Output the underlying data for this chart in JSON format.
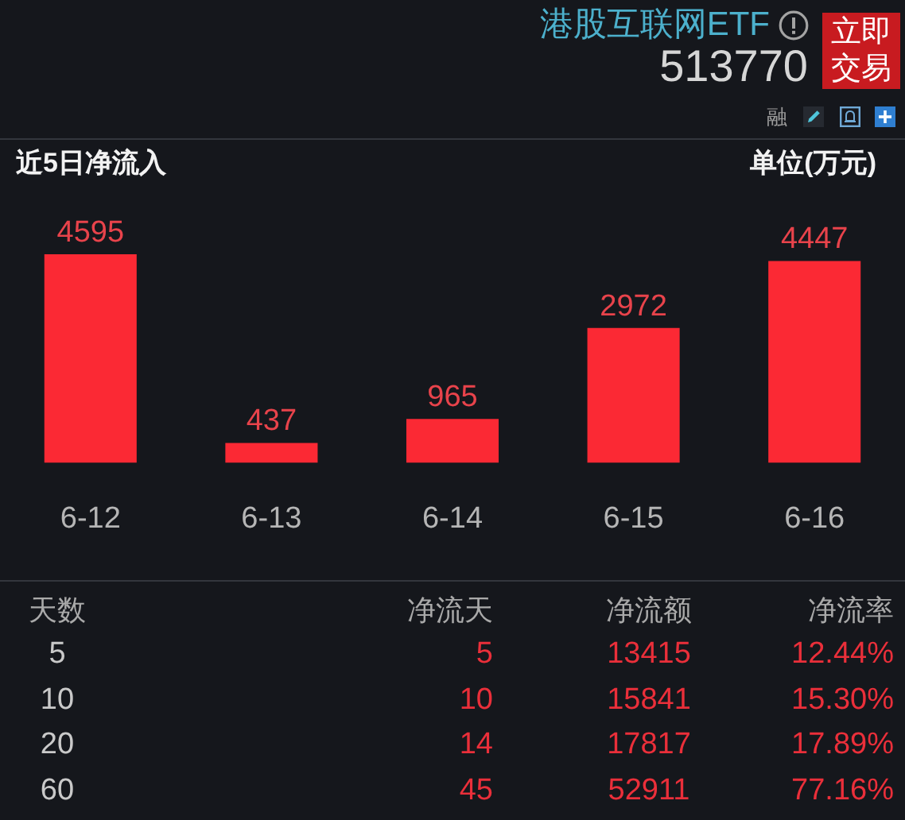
{
  "chart_data": [
    {
      "type": "other",
      "title": "港股互联网ETF",
      "subtitle": "513770",
      "annotations": [
        "立即交易",
        "融"
      ]
    },
    {
      "type": "bar",
      "title": "近5日净流入",
      "annotations": [
        "单位(万元)"
      ],
      "categories": [
        "6-12",
        "6-13",
        "6-14",
        "6-15",
        "6-16"
      ],
      "values": [
        4595,
        437,
        965,
        2972,
        4447
      ],
      "color": "#fb2934",
      "data_labels": true
    },
    {
      "type": "other",
      "ylabel": "天数",
      "categories": [
        "净流天",
        "净流额",
        "净流率"
      ],
      "y_categories": [
        "5",
        "10",
        "20",
        "60"
      ],
      "cell_labels": [
        [
          "5",
          "13415",
          "12.44%"
        ],
        [
          "10",
          "15841",
          "15.30%"
        ],
        [
          "14",
          "17817",
          "17.89%"
        ],
        [
          "45",
          "52911",
          "77.16%"
        ]
      ]
    }
  ]
}
